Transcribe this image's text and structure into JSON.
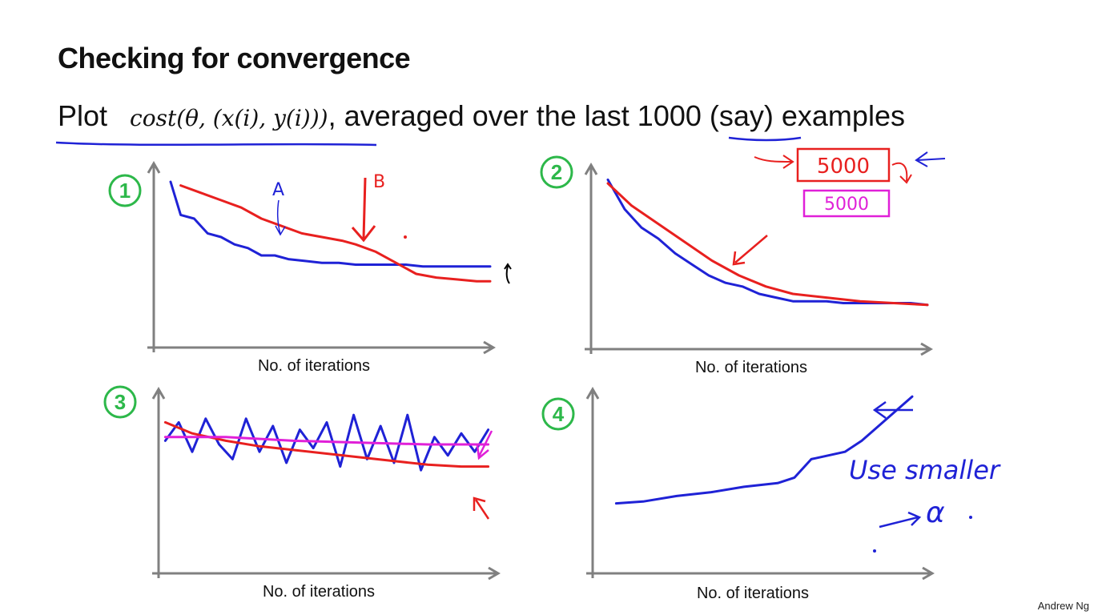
{
  "slide": {
    "title": "Checking for convergence",
    "subtitle_prefix": "Plot",
    "subtitle_math": "cost(θ, (x(i), y(i)))",
    "subtitle_rest": ", averaged over the last 1000 (say) examples",
    "footer": "Andrew Ng"
  },
  "colors": {
    "green": "#2db84a",
    "blue": "#1f22d6",
    "red": "#e8201f",
    "magenta": "#e020d8",
    "axis": "#808080"
  },
  "panel_numbers": [
    "1",
    "2",
    "3",
    "4"
  ],
  "annotations": {
    "label_a": "A",
    "label_b": "B",
    "box_red": "5000",
    "box_magenta": "5000",
    "note_line1": "Use smaller",
    "note_alpha": "α"
  },
  "chart_data": [
    {
      "type": "line",
      "xlabel": "No. of iterations",
      "ylabel": "",
      "xlim": [
        0,
        100
      ],
      "ylim": [
        0,
        100
      ],
      "series": [
        {
          "color": "blue",
          "x": [
            5,
            8,
            12,
            16,
            20,
            24,
            28,
            32,
            36,
            40,
            45,
            50,
            55,
            60,
            65,
            70,
            75,
            80,
            85,
            90,
            95,
            100
          ],
          "y": [
            90,
            72,
            70,
            62,
            60,
            56,
            54,
            50,
            50,
            48,
            47,
            46,
            46,
            45,
            45,
            45,
            45,
            44,
            44,
            44,
            44,
            44
          ]
        },
        {
          "color": "red",
          "x": [
            8,
            14,
            20,
            26,
            32,
            38,
            44,
            50,
            56,
            60,
            66,
            72,
            78,
            84,
            90,
            96,
            100
          ],
          "y": [
            88,
            84,
            80,
            76,
            70,
            66,
            62,
            60,
            58,
            56,
            52,
            46,
            40,
            38,
            37,
            36,
            36
          ]
        }
      ]
    },
    {
      "type": "line",
      "xlabel": "No. of iterations",
      "ylabel": "",
      "xlim": [
        0,
        100
      ],
      "ylim": [
        0,
        100
      ],
      "series": [
        {
          "color": "blue",
          "x": [
            5,
            10,
            15,
            20,
            25,
            30,
            35,
            40,
            45,
            50,
            55,
            60,
            65,
            70,
            75,
            80,
            85,
            90,
            95,
            100
          ],
          "y": [
            92,
            76,
            66,
            60,
            52,
            46,
            40,
            36,
            34,
            30,
            28,
            26,
            26,
            26,
            25,
            25,
            25,
            25,
            25,
            24
          ]
        },
        {
          "color": "red",
          "x": [
            5,
            12,
            20,
            28,
            36,
            44,
            52,
            60,
            70,
            80,
            90,
            100
          ],
          "y": [
            90,
            78,
            68,
            58,
            48,
            40,
            34,
            30,
            28,
            26,
            25,
            24
          ]
        }
      ]
    },
    {
      "type": "line",
      "xlabel": "No. of iterations",
      "ylabel": "",
      "xlim": [
        0,
        100
      ],
      "ylim": [
        0,
        100
      ],
      "series": [
        {
          "color": "blue",
          "x": [
            2,
            6,
            10,
            14,
            18,
            22,
            26,
            30,
            34,
            38,
            42,
            46,
            50,
            54,
            58,
            62,
            66,
            70,
            74,
            78,
            82,
            86,
            90,
            94,
            98
          ],
          "y": [
            72,
            82,
            66,
            84,
            70,
            62,
            84,
            66,
            80,
            60,
            78,
            68,
            82,
            58,
            86,
            62,
            80,
            60,
            86,
            56,
            74,
            64,
            76,
            66,
            78
          ]
        },
        {
          "color": "red",
          "x": [
            2,
            10,
            20,
            30,
            40,
            50,
            60,
            70,
            80,
            90,
            98
          ],
          "y": [
            82,
            76,
            72,
            69,
            67,
            65,
            63,
            61,
            59,
            58,
            58
          ]
        },
        {
          "color": "magenta",
          "x": [
            2,
            20,
            40,
            60,
            80,
            98
          ],
          "y": [
            74,
            74,
            72,
            71,
            70,
            70
          ]
        }
      ]
    },
    {
      "type": "line",
      "xlabel": "No. of iterations",
      "ylabel": "",
      "xlim": [
        0,
        100
      ],
      "ylim": [
        0,
        100
      ],
      "series": [
        {
          "color": "blue",
          "x": [
            7,
            15,
            25,
            35,
            45,
            55,
            60,
            65,
            70,
            75,
            80,
            85,
            90,
            95
          ],
          "y": [
            38,
            39,
            42,
            44,
            47,
            49,
            52,
            62,
            64,
            66,
            72,
            80,
            88,
            96
          ]
        }
      ]
    }
  ]
}
